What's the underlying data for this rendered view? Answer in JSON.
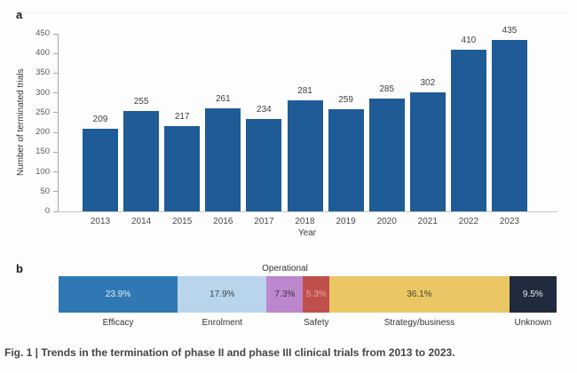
{
  "figure": {
    "panel_a_label": "a",
    "panel_b_label": "b",
    "caption": "Fig. 1 | Trends in the termination of phase II and phase III clinical trials from 2013 to 2023."
  },
  "chart_data": [
    {
      "type": "bar",
      "title": "",
      "xlabel": "Year",
      "ylabel": "Number of terminated trials",
      "categories": [
        "2013",
        "2014",
        "2015",
        "2016",
        "2017",
        "2018",
        "2019",
        "2020",
        "2021",
        "2022",
        "2023"
      ],
      "values": [
        209,
        255,
        217,
        261,
        234,
        281,
        259,
        285,
        302,
        410,
        435
      ],
      "ylim": [
        0,
        450
      ],
      "yticks": [
        0,
        50,
        100,
        150,
        200,
        250,
        300,
        350,
        400,
        450
      ],
      "bar_color": "#1e5b97",
      "grid": false,
      "value_labels_shown": true
    },
    {
      "type": "stacked-bar-horizontal",
      "title": "",
      "unit": "%",
      "segments": [
        {
          "label": "Efficacy",
          "value": 23.9,
          "display": "23.9%",
          "color": "#2f78b3",
          "text_color": "#eaf1f7",
          "label_side": "below"
        },
        {
          "label": "Enrolment",
          "value": 17.9,
          "display": "17.9%",
          "color": "#b8d5ec",
          "text_color": "#3d4045",
          "label_side": "below"
        },
        {
          "label": "Operational",
          "value": 7.3,
          "display": "7.3%",
          "color": "#bd87cd",
          "text_color": "#3c2f45",
          "label_side": "above"
        },
        {
          "label": "Safety",
          "value": 5.3,
          "display": "5.3%",
          "color": "#c04f4c",
          "text_color": "#e3a8a3",
          "label_side": "below"
        },
        {
          "label": "Strategy/business",
          "value": 36.1,
          "display": "36.1%",
          "color": "#eac764",
          "text_color": "#49412f",
          "label_side": "below"
        },
        {
          "label": "Unknown",
          "value": 9.5,
          "display": "9.5%",
          "color": "#202b3d",
          "text_color": "#e8eaee",
          "label_side": "below"
        }
      ]
    }
  ]
}
